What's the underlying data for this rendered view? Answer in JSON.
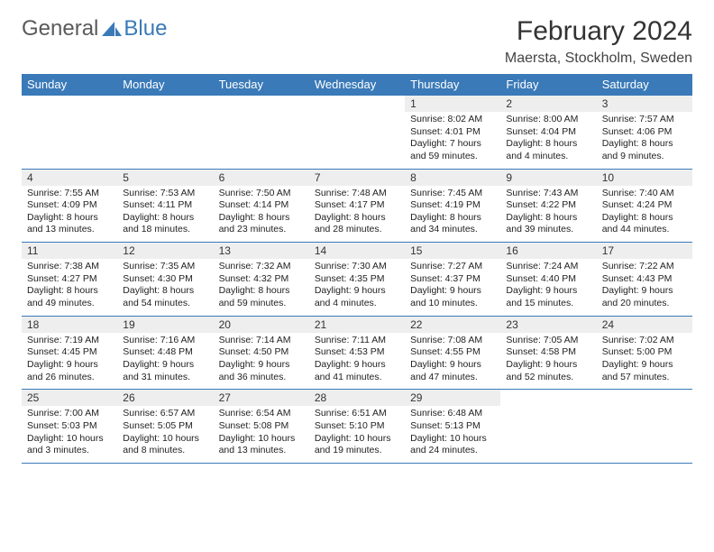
{
  "logo": {
    "part1": "General",
    "part2": "Blue"
  },
  "title": "February 2024",
  "location": "Maersta, Stockholm, Sweden",
  "brand_color": "#3a7ab8",
  "daynum_bg": "#eeeeee",
  "background_color": "#ffffff",
  "text_color": "#333333",
  "weekdays": [
    "Sunday",
    "Monday",
    "Tuesday",
    "Wednesday",
    "Thursday",
    "Friday",
    "Saturday"
  ],
  "weeks": [
    {
      "days": [
        {
          "num": "",
          "sunrise": "",
          "sunset": "",
          "daylight": ""
        },
        {
          "num": "",
          "sunrise": "",
          "sunset": "",
          "daylight": ""
        },
        {
          "num": "",
          "sunrise": "",
          "sunset": "",
          "daylight": ""
        },
        {
          "num": "",
          "sunrise": "",
          "sunset": "",
          "daylight": ""
        },
        {
          "num": "1",
          "sunrise": "Sunrise: 8:02 AM",
          "sunset": "Sunset: 4:01 PM",
          "daylight": "Daylight: 7 hours and 59 minutes."
        },
        {
          "num": "2",
          "sunrise": "Sunrise: 8:00 AM",
          "sunset": "Sunset: 4:04 PM",
          "daylight": "Daylight: 8 hours and 4 minutes."
        },
        {
          "num": "3",
          "sunrise": "Sunrise: 7:57 AM",
          "sunset": "Sunset: 4:06 PM",
          "daylight": "Daylight: 8 hours and 9 minutes."
        }
      ]
    },
    {
      "days": [
        {
          "num": "4",
          "sunrise": "Sunrise: 7:55 AM",
          "sunset": "Sunset: 4:09 PM",
          "daylight": "Daylight: 8 hours and 13 minutes."
        },
        {
          "num": "5",
          "sunrise": "Sunrise: 7:53 AM",
          "sunset": "Sunset: 4:11 PM",
          "daylight": "Daylight: 8 hours and 18 minutes."
        },
        {
          "num": "6",
          "sunrise": "Sunrise: 7:50 AM",
          "sunset": "Sunset: 4:14 PM",
          "daylight": "Daylight: 8 hours and 23 minutes."
        },
        {
          "num": "7",
          "sunrise": "Sunrise: 7:48 AM",
          "sunset": "Sunset: 4:17 PM",
          "daylight": "Daylight: 8 hours and 28 minutes."
        },
        {
          "num": "8",
          "sunrise": "Sunrise: 7:45 AM",
          "sunset": "Sunset: 4:19 PM",
          "daylight": "Daylight: 8 hours and 34 minutes."
        },
        {
          "num": "9",
          "sunrise": "Sunrise: 7:43 AM",
          "sunset": "Sunset: 4:22 PM",
          "daylight": "Daylight: 8 hours and 39 minutes."
        },
        {
          "num": "10",
          "sunrise": "Sunrise: 7:40 AM",
          "sunset": "Sunset: 4:24 PM",
          "daylight": "Daylight: 8 hours and 44 minutes."
        }
      ]
    },
    {
      "days": [
        {
          "num": "11",
          "sunrise": "Sunrise: 7:38 AM",
          "sunset": "Sunset: 4:27 PM",
          "daylight": "Daylight: 8 hours and 49 minutes."
        },
        {
          "num": "12",
          "sunrise": "Sunrise: 7:35 AM",
          "sunset": "Sunset: 4:30 PM",
          "daylight": "Daylight: 8 hours and 54 minutes."
        },
        {
          "num": "13",
          "sunrise": "Sunrise: 7:32 AM",
          "sunset": "Sunset: 4:32 PM",
          "daylight": "Daylight: 8 hours and 59 minutes."
        },
        {
          "num": "14",
          "sunrise": "Sunrise: 7:30 AM",
          "sunset": "Sunset: 4:35 PM",
          "daylight": "Daylight: 9 hours and 4 minutes."
        },
        {
          "num": "15",
          "sunrise": "Sunrise: 7:27 AM",
          "sunset": "Sunset: 4:37 PM",
          "daylight": "Daylight: 9 hours and 10 minutes."
        },
        {
          "num": "16",
          "sunrise": "Sunrise: 7:24 AM",
          "sunset": "Sunset: 4:40 PM",
          "daylight": "Daylight: 9 hours and 15 minutes."
        },
        {
          "num": "17",
          "sunrise": "Sunrise: 7:22 AM",
          "sunset": "Sunset: 4:43 PM",
          "daylight": "Daylight: 9 hours and 20 minutes."
        }
      ]
    },
    {
      "days": [
        {
          "num": "18",
          "sunrise": "Sunrise: 7:19 AM",
          "sunset": "Sunset: 4:45 PM",
          "daylight": "Daylight: 9 hours and 26 minutes."
        },
        {
          "num": "19",
          "sunrise": "Sunrise: 7:16 AM",
          "sunset": "Sunset: 4:48 PM",
          "daylight": "Daylight: 9 hours and 31 minutes."
        },
        {
          "num": "20",
          "sunrise": "Sunrise: 7:14 AM",
          "sunset": "Sunset: 4:50 PM",
          "daylight": "Daylight: 9 hours and 36 minutes."
        },
        {
          "num": "21",
          "sunrise": "Sunrise: 7:11 AM",
          "sunset": "Sunset: 4:53 PM",
          "daylight": "Daylight: 9 hours and 41 minutes."
        },
        {
          "num": "22",
          "sunrise": "Sunrise: 7:08 AM",
          "sunset": "Sunset: 4:55 PM",
          "daylight": "Daylight: 9 hours and 47 minutes."
        },
        {
          "num": "23",
          "sunrise": "Sunrise: 7:05 AM",
          "sunset": "Sunset: 4:58 PM",
          "daylight": "Daylight: 9 hours and 52 minutes."
        },
        {
          "num": "24",
          "sunrise": "Sunrise: 7:02 AM",
          "sunset": "Sunset: 5:00 PM",
          "daylight": "Daylight: 9 hours and 57 minutes."
        }
      ]
    },
    {
      "days": [
        {
          "num": "25",
          "sunrise": "Sunrise: 7:00 AM",
          "sunset": "Sunset: 5:03 PM",
          "daylight": "Daylight: 10 hours and 3 minutes."
        },
        {
          "num": "26",
          "sunrise": "Sunrise: 6:57 AM",
          "sunset": "Sunset: 5:05 PM",
          "daylight": "Daylight: 10 hours and 8 minutes."
        },
        {
          "num": "27",
          "sunrise": "Sunrise: 6:54 AM",
          "sunset": "Sunset: 5:08 PM",
          "daylight": "Daylight: 10 hours and 13 minutes."
        },
        {
          "num": "28",
          "sunrise": "Sunrise: 6:51 AM",
          "sunset": "Sunset: 5:10 PM",
          "daylight": "Daylight: 10 hours and 19 minutes."
        },
        {
          "num": "29",
          "sunrise": "Sunrise: 6:48 AM",
          "sunset": "Sunset: 5:13 PM",
          "daylight": "Daylight: 10 hours and 24 minutes."
        },
        {
          "num": "",
          "sunrise": "",
          "sunset": "",
          "daylight": ""
        },
        {
          "num": "",
          "sunrise": "",
          "sunset": "",
          "daylight": ""
        }
      ]
    }
  ]
}
